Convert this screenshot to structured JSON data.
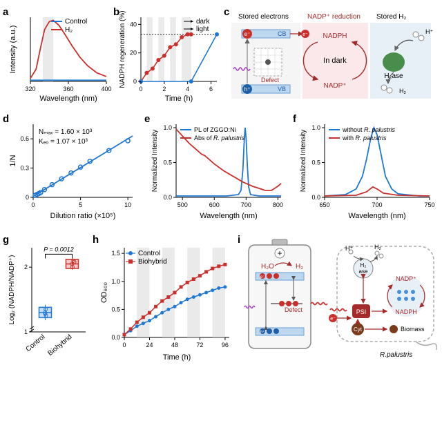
{
  "colors": {
    "blue": "#1f77d4",
    "red": "#c9302c",
    "darkred": "#a52a2a",
    "panel_pink": "#fae8ea",
    "panel_lightblue": "#e8f0f7",
    "panel_gray": "#dcdcdc",
    "defect_blue": "#4a90d9",
    "gridline": "#000000"
  },
  "a": {
    "title": "a",
    "ylabel": "Intensity (a.u.)",
    "xlabel": "Wavelength (nm)",
    "xlim": [
      320,
      400
    ],
    "xticks": [
      320,
      360,
      400
    ],
    "legend": [
      {
        "label": "Control",
        "color": "#1f77d4"
      },
      {
        "label": "H₂",
        "color": "#c9302c"
      }
    ],
    "series": [
      {
        "name": "Control",
        "color": "#1f77d4",
        "points": [
          [
            320,
            0.02
          ],
          [
            330,
            0.02
          ],
          [
            340,
            0.02
          ],
          [
            350,
            0.02
          ],
          [
            360,
            0.02
          ],
          [
            370,
            0.02
          ],
          [
            380,
            0.02
          ],
          [
            390,
            0.02
          ],
          [
            400,
            0.02
          ]
        ]
      },
      {
        "name": "H2",
        "color": "#c9302c",
        "points": [
          [
            320,
            0.05
          ],
          [
            326,
            0.2
          ],
          [
            330,
            0.5
          ],
          [
            335,
            0.85
          ],
          [
            340,
            0.98
          ],
          [
            344,
            1.0
          ],
          [
            350,
            0.92
          ],
          [
            356,
            0.78
          ],
          [
            364,
            0.58
          ],
          [
            372,
            0.4
          ],
          [
            380,
            0.26
          ],
          [
            390,
            0.14
          ],
          [
            400,
            0.08
          ]
        ]
      }
    ],
    "shaded_band": [
      333,
      344
    ],
    "ylim": [
      0,
      1.05
    ]
  },
  "b": {
    "title": "b",
    "ylabel": "NADPH regeneration (%)",
    "xlabel": "Time (h)",
    "xlim": [
      0,
      6.5
    ],
    "xticks": [
      0,
      2,
      4,
      6
    ],
    "ylim": [
      0,
      45
    ],
    "yticks": [
      0,
      20,
      40
    ],
    "legend": [
      {
        "label": "dark",
        "marker": "→"
      },
      {
        "label": "light",
        "marker": "→"
      }
    ],
    "dark_bands": [
      [
        0.5,
        1
      ],
      [
        1.5,
        2
      ],
      [
        2.5,
        3
      ],
      [
        3.5,
        4.3
      ]
    ],
    "dashed_y": [
      0,
      33
    ],
    "series": [
      {
        "name": "red",
        "color": "#c9302c",
        "marker": "circle",
        "points": [
          [
            0,
            0
          ],
          [
            0.5,
            6
          ],
          [
            1,
            9
          ],
          [
            1.5,
            15
          ],
          [
            2,
            18
          ],
          [
            2.5,
            24
          ],
          [
            3,
            26
          ],
          [
            3.5,
            31
          ],
          [
            4,
            33
          ],
          [
            4.3,
            33
          ]
        ]
      },
      {
        "name": "blue",
        "color": "#1f77d4",
        "marker": "circle",
        "points": [
          [
            0,
            0
          ],
          [
            4.3,
            0
          ],
          [
            6.5,
            33
          ]
        ]
      }
    ]
  },
  "c": {
    "title": "c",
    "headers": [
      "Stored electrons",
      "NADP⁺ reduction",
      "Stored H₂"
    ],
    "labels": {
      "CB": "CB",
      "VB": "VB",
      "Defect": "Defect",
      "NADPH": "NADPH",
      "NADP": "NADP⁺",
      "InDark": "In dark",
      "H2ase": "H₂ase",
      "H2": "H₂",
      "Hplus": "H⁺"
    }
  },
  "d": {
    "title": "d",
    "ylabel": "1/N",
    "xlabel": "Dilution ratio (×10⁵)",
    "xlim": [
      0,
      10.5
    ],
    "xticks": [
      0,
      5,
      10
    ],
    "ylim": [
      0,
      0.75
    ],
    "yticks": [
      0,
      0.3,
      0.6
    ],
    "annot1": "Nₘₐₓ = 1.60 × 10³",
    "annot2": "Kₑₒ = 1.07 × 10³",
    "series": {
      "color": "#1f77d4",
      "fit": [
        [
          0,
          0.01
        ],
        [
          10.5,
          0.63
        ]
      ],
      "points": [
        [
          0.2,
          0.02
        ],
        [
          0.4,
          0.03
        ],
        [
          0.6,
          0.04
        ],
        [
          0.8,
          0.05
        ],
        [
          1.2,
          0.08
        ],
        [
          2,
          0.13
        ],
        [
          3,
          0.19
        ],
        [
          4,
          0.25
        ],
        [
          5,
          0.31
        ],
        [
          6,
          0.37
        ],
        [
          8,
          0.48
        ],
        [
          10,
          0.58
        ]
      ]
    }
  },
  "e": {
    "title": "e",
    "ylabel": "Normalized Intensity",
    "xlabel": "Wavelength (nm)",
    "xlim": [
      480,
      810
    ],
    "xticks": [
      500,
      600,
      700,
      800
    ],
    "ylim": [
      0,
      1.05
    ],
    "yticks": [
      0,
      0.5,
      1.0
    ],
    "legend": [
      {
        "label": "PL of ZGGO:Ni",
        "color": "#1f77d4"
      },
      {
        "label": "Abs of R. palustris",
        "color": "#c9302c",
        "italic_part": "R. palustris"
      }
    ],
    "series": [
      {
        "name": "PL",
        "color": "#1f77d4",
        "points": [
          [
            480,
            0.02
          ],
          [
            550,
            0.02
          ],
          [
            640,
            0.02
          ],
          [
            676,
            0.04
          ],
          [
            684,
            0.1
          ],
          [
            690,
            0.4
          ],
          [
            694,
            0.8
          ],
          [
            697,
            1.0
          ],
          [
            700,
            0.85
          ],
          [
            704,
            0.45
          ],
          [
            708,
            0.15
          ],
          [
            714,
            0.04
          ],
          [
            740,
            0.02
          ],
          [
            810,
            0.02
          ]
        ]
      },
      {
        "name": "Abs",
        "color": "#c9302c",
        "points": [
          [
            480,
            0.98
          ],
          [
            500,
            0.88
          ],
          [
            520,
            0.78
          ],
          [
            540,
            0.7
          ],
          [
            560,
            0.62
          ],
          [
            570,
            0.6
          ],
          [
            580,
            0.56
          ],
          [
            600,
            0.48
          ],
          [
            630,
            0.38
          ],
          [
            660,
            0.3
          ],
          [
            690,
            0.22
          ],
          [
            720,
            0.16
          ],
          [
            740,
            0.13
          ],
          [
            760,
            0.1
          ],
          [
            780,
            0.1
          ],
          [
            800,
            0.16
          ],
          [
            810,
            0.2
          ]
        ]
      }
    ]
  },
  "f": {
    "title": "f",
    "ylabel": "Normalized Intensity",
    "xlabel": "Wavelength (nm)",
    "xlim": [
      650,
      750
    ],
    "xticks": [
      650,
      700,
      750
    ],
    "ylim": [
      0,
      1.05
    ],
    "yticks": [
      0,
      0.5,
      1.0
    ],
    "legend": [
      {
        "label": "without R. palustris",
        "color": "#1f77d4",
        "italic_part": "R. palustris"
      },
      {
        "label": "with R. palustris",
        "color": "#c9302c",
        "italic_part": "R. palustris"
      }
    ],
    "series": [
      {
        "name": "without",
        "color": "#1f77d4",
        "points": [
          [
            650,
            0.02
          ],
          [
            670,
            0.04
          ],
          [
            680,
            0.12
          ],
          [
            686,
            0.3
          ],
          [
            690,
            0.55
          ],
          [
            694,
            0.85
          ],
          [
            697,
            1.0
          ],
          [
            700,
            0.9
          ],
          [
            704,
            0.6
          ],
          [
            708,
            0.3
          ],
          [
            714,
            0.12
          ],
          [
            720,
            0.05
          ],
          [
            740,
            0.02
          ],
          [
            750,
            0.02
          ]
        ]
      },
      {
        "name": "with",
        "color": "#c9302c",
        "points": [
          [
            650,
            0.02
          ],
          [
            680,
            0.03
          ],
          [
            690,
            0.08
          ],
          [
            696,
            0.15
          ],
          [
            700,
            0.12
          ],
          [
            706,
            0.06
          ],
          [
            720,
            0.03
          ],
          [
            750,
            0.02
          ]
        ]
      }
    ]
  },
  "g": {
    "title": "g",
    "ylabel": "Log₂ (NADPH/NADP⁺)",
    "xlabels": [
      "Control",
      "Biohybrid"
    ],
    "ylim": [
      1,
      2.3
    ],
    "yticks": [
      1,
      2
    ],
    "pvalue": "P = 0.0012",
    "boxes": [
      {
        "x": 0,
        "color": "#1f77d4",
        "q1": 1.22,
        "med": 1.3,
        "q3": 1.38,
        "low": 1.18,
        "high": 1.42,
        "pts": [
          1.25,
          1.3,
          1.35,
          1.28
        ]
      },
      {
        "x": 1,
        "color": "#c9302c",
        "q1": 1.98,
        "med": 2.05,
        "q3": 2.12,
        "low": 1.96,
        "high": 2.15,
        "pts": [
          2.0,
          2.05,
          2.1,
          2.08
        ]
      }
    ]
  },
  "h": {
    "title": "h",
    "ylabel": "OD₆₀₀",
    "xlabel": "Time (h)",
    "xlim": [
      0,
      100
    ],
    "xticks": [
      0,
      24,
      48,
      72,
      96
    ],
    "ylim": [
      0,
      1.6
    ],
    "yticks": [
      0,
      0.5,
      1.0,
      1.5
    ],
    "dark_bands": [
      [
        12,
        24
      ],
      [
        36,
        48
      ],
      [
        60,
        72
      ],
      [
        84,
        96
      ]
    ],
    "legend": [
      {
        "label": "Control",
        "color": "#1f77d4",
        "marker": "circle"
      },
      {
        "label": "Biohybrid",
        "color": "#c9302c",
        "marker": "square"
      }
    ],
    "series": [
      {
        "name": "Control",
        "color": "#1f77d4",
        "marker": "circle",
        "points": [
          [
            0,
            0.05
          ],
          [
            6,
            0.12
          ],
          [
            12,
            0.2
          ],
          [
            18,
            0.25
          ],
          [
            24,
            0.3
          ],
          [
            30,
            0.37
          ],
          [
            36,
            0.44
          ],
          [
            42,
            0.5
          ],
          [
            48,
            0.55
          ],
          [
            54,
            0.62
          ],
          [
            60,
            0.68
          ],
          [
            66,
            0.72
          ],
          [
            72,
            0.76
          ],
          [
            78,
            0.8
          ],
          [
            84,
            0.84
          ],
          [
            90,
            0.88
          ],
          [
            96,
            0.9
          ]
        ]
      },
      {
        "name": "Biohybrid",
        "color": "#c9302c",
        "marker": "square",
        "points": [
          [
            0,
            0.05
          ],
          [
            6,
            0.15
          ],
          [
            12,
            0.27
          ],
          [
            18,
            0.36
          ],
          [
            24,
            0.44
          ],
          [
            30,
            0.55
          ],
          [
            36,
            0.65
          ],
          [
            42,
            0.72
          ],
          [
            48,
            0.8
          ],
          [
            54,
            0.9
          ],
          [
            60,
            0.98
          ],
          [
            66,
            1.04
          ],
          [
            72,
            1.1
          ],
          [
            78,
            1.17
          ],
          [
            84,
            1.23
          ],
          [
            90,
            1.27
          ],
          [
            96,
            1.3
          ]
        ]
      }
    ]
  },
  "i": {
    "title": "i",
    "labels": {
      "H2O": "H₂O",
      "H2": "H₂",
      "Hplus": "H⁺",
      "Defect": "Defect",
      "PSI": "PSI",
      "Cyt": "Cyt",
      "NADPH": "NADPH",
      "NADP": "NADP⁺",
      "H2ase": "H₂\nase",
      "Biomass": "Biomass",
      "Rpal": "R.palustris"
    }
  }
}
